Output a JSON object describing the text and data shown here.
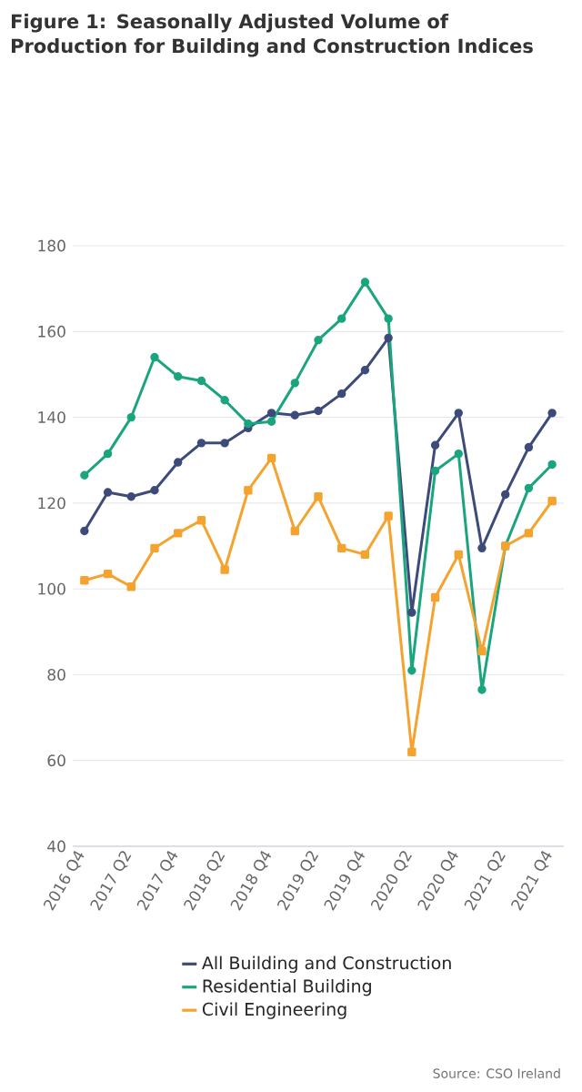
{
  "chart_data": {
    "type": "line",
    "title": "Figure 1: Seasonally Adjusted Volume of Production for Building and Construction Indices",
    "categories": [
      "2016 Q4",
      null,
      "2017 Q2",
      null,
      "2017 Q4",
      null,
      "2018 Q2",
      null,
      "2018 Q4",
      null,
      "2019 Q2",
      null,
      "2019 Q4",
      null,
      "2020 Q2",
      null,
      "2020 Q4",
      null,
      "2021 Q2",
      null,
      "2021 Q4"
    ],
    "series": [
      {
        "name": "All Building and Construction",
        "color": "#3d4b7a",
        "marker": "circle",
        "values": [
          113.5,
          122.5,
          121.5,
          123,
          129.5,
          134,
          134,
          137.5,
          141,
          140.5,
          141.5,
          145.5,
          151,
          158.5,
          94.5,
          133.5,
          141,
          109.5,
          122,
          133,
          141
        ]
      },
      {
        "name": "Residential Building",
        "color": "#1aa57f",
        "marker": "circle",
        "values": [
          126.5,
          131.5,
          140,
          154,
          149.5,
          148.5,
          144,
          138.5,
          139,
          148,
          158,
          163,
          171.5,
          163,
          81,
          127.5,
          131.5,
          76.5,
          110,
          123.5,
          129
        ]
      },
      {
        "name": "Civil Engineering",
        "color": "#f5a32f",
        "marker": "square",
        "values": [
          102,
          103.5,
          100.5,
          109.5,
          113,
          116,
          104.5,
          123,
          130.5,
          113.5,
          121.5,
          109.5,
          108,
          117,
          62,
          98,
          108,
          85.5,
          110,
          113,
          120.5
        ]
      }
    ],
    "ylim": [
      40,
      180
    ],
    "yticks": [
      40,
      60,
      80,
      100,
      120,
      140,
      160,
      180
    ],
    "grid": "y",
    "legend": "bottom",
    "annotations": [
      "Source: CSO Ireland"
    ]
  }
}
